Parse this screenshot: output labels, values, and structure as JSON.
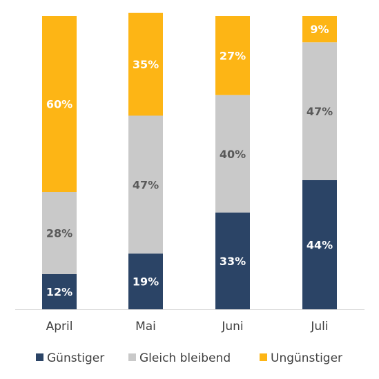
{
  "chart_data": {
    "type": "bar",
    "stacked": true,
    "categories": [
      "April",
      "Mai",
      "Juni",
      "Juli"
    ],
    "series": [
      {
        "name": "Günstiger",
        "color": "#2b4466",
        "label_color": "#ffffff",
        "values": [
          12,
          19,
          33,
          44
        ]
      },
      {
        "name": "Gleich bleibend",
        "color": "#c9c9c9",
        "label_color": "#595959",
        "values": [
          28,
          47,
          40,
          47
        ]
      },
      {
        "name": "Ungünstiger",
        "color": "#fdb515",
        "label_color": "#ffffff",
        "values": [
          60,
          35,
          27,
          9
        ]
      }
    ],
    "value_suffix": "%",
    "ylim": [
      0,
      100
    ],
    "grid": false,
    "legend_position": "bottom",
    "title": "",
    "xlabel": "",
    "ylabel": ""
  }
}
